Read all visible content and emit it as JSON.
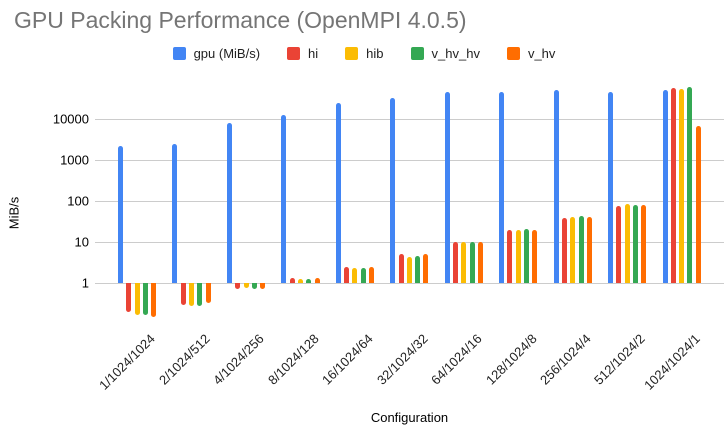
{
  "chart_data": {
    "type": "bar",
    "y_scale": "log",
    "grid": true,
    "legend_position": "top",
    "title": "GPU Packing Performance (OpenMPI 4.0.5)",
    "xlabel": "Configuration",
    "ylabel": "MiB/s",
    "y_ticks": [
      1,
      10,
      100,
      1000,
      10000
    ],
    "ylim": [
      0.125,
      67000
    ],
    "categories": [
      "1/1024/1024",
      "2/1024/512",
      "4/1024/256",
      "8/1024/128",
      "16/1024/64",
      "32/1024/32",
      "64/1024/16",
      "128/1024/8",
      "256/1024/4",
      "512/1024/2",
      "1024/1024/1"
    ],
    "series": [
      {
        "name": "gpu (MiB/s)",
        "color": "#4285F4",
        "values": [
          2200,
          2500,
          8000,
          12500,
          24000,
          33000,
          45000,
          46000,
          50000,
          46000,
          52000
        ]
      },
      {
        "name": "hi",
        "color": "#EA4335",
        "values": [
          0.2,
          0.29,
          0.7,
          1.3,
          2.4,
          5.0,
          10,
          19.5,
          39,
          75,
          58000
        ]
      },
      {
        "name": "hib",
        "color": "#FBBC04",
        "values": [
          0.17,
          0.27,
          0.75,
          1.25,
          2.3,
          4.3,
          10,
          20,
          41,
          84,
          55000
        ]
      },
      {
        "name": "v_hv_hv",
        "color": "#34A853",
        "values": [
          0.17,
          0.27,
          0.72,
          1.25,
          2.3,
          4.5,
          10,
          20.5,
          42,
          78,
          59000
        ]
      },
      {
        "name": "v_hv",
        "color": "#FF6D01",
        "values": [
          0.15,
          0.33,
          0.7,
          1.3,
          2.4,
          5.0,
          10,
          20,
          40,
          81,
          6800
        ]
      }
    ]
  },
  "colors": {
    "title": "#757575",
    "gridline": "#cccccc",
    "axis_text": "#000000",
    "legend_text": "#222222",
    "background": "#ffffff"
  }
}
